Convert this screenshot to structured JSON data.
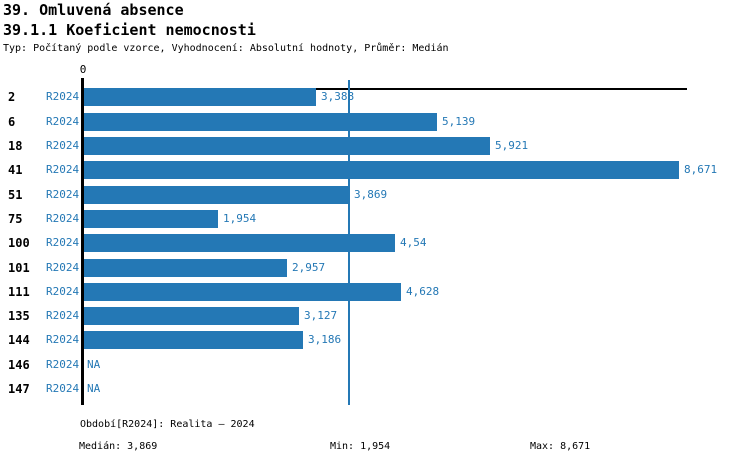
{
  "header": {
    "title": "39. Omluvená absence",
    "subtitle": "39.1.1 Koeficient nemocnosti",
    "meta": "Typ: Počítaný podle vzorce, Vyhodnocení: Absolutní hodnoty, Průměr: Medián"
  },
  "chart_data": {
    "type": "bar",
    "orientation": "horizontal",
    "title": "39.1.1 Koeficient nemocnosti",
    "categories": [
      "2",
      "6",
      "18",
      "41",
      "51",
      "75",
      "100",
      "101",
      "111",
      "135",
      "144",
      "146",
      "147"
    ],
    "series": [
      {
        "name": "R2024",
        "values": [
          3.388,
          5.139,
          5.921,
          8.671,
          3.869,
          1.954,
          4.54,
          2.957,
          4.628,
          3.127,
          3.186,
          null,
          null
        ],
        "labels": [
          "3,388",
          "5,139",
          "5,921",
          "8,671",
          "3,869",
          "1,954",
          "4,54",
          "2,957",
          "4,628",
          "3,127",
          "3,186",
          "NA",
          "NA"
        ]
      }
    ],
    "xlim": [
      0,
      8.79
    ],
    "grid": false,
    "legend_position": "none",
    "zero_tick_label": "0",
    "median_value": 3.869,
    "bar_color": "#2478b5"
  },
  "footer": {
    "period": "Období[R2024]: Realita – 2024",
    "median": "Medián: 3,869",
    "min": "Min: 1,954",
    "max": "Max: 8,671"
  },
  "colors": {
    "accent": "#2478b5",
    "text": "#000000",
    "background": "#ffffff"
  }
}
